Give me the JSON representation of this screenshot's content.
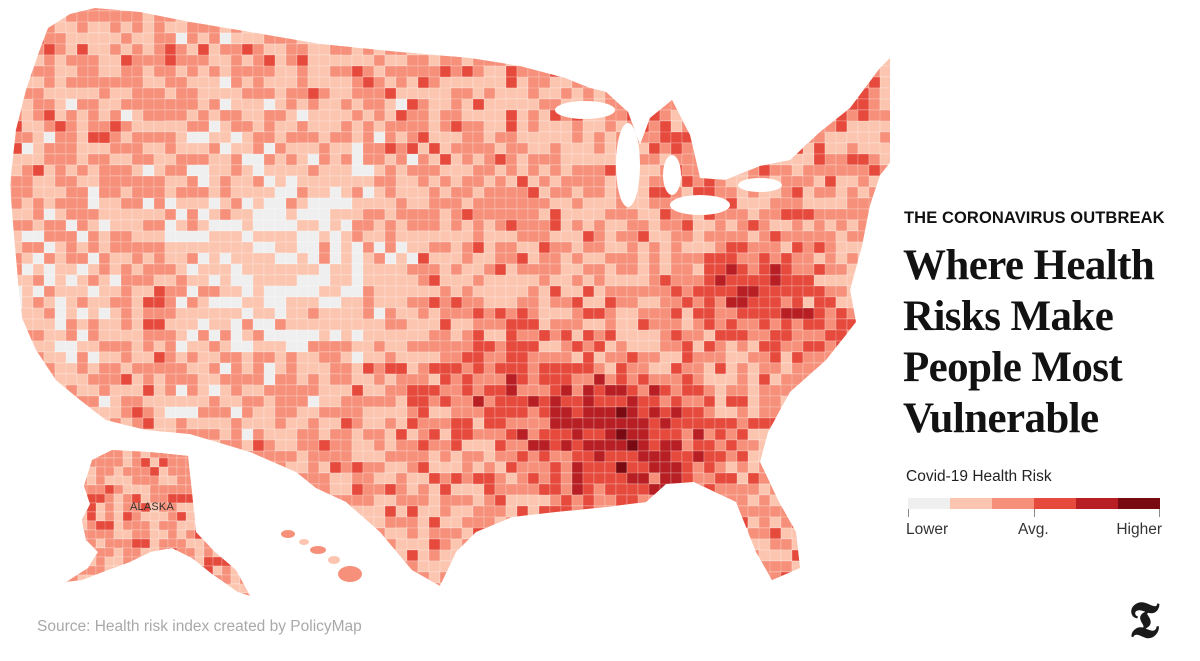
{
  "kicker": "THE CORONAVIRUS OUTBREAK",
  "headline": {
    "lines": [
      "Where Health",
      "Risks Make",
      "People Most",
      "Vulnerable"
    ]
  },
  "map": {
    "region_label": "ALASKA",
    "description_hidden": false
  },
  "legend": {
    "title": "Covid-19 Health Risk",
    "colors": [
      "#efefef",
      "#fbc5b0",
      "#f6907a",
      "#e64a3c",
      "#b71f24",
      "#7a0a12"
    ],
    "labels": {
      "low": "Lower",
      "avg": "Avg.",
      "high": "Higher"
    }
  },
  "source": "Source: Health risk index created by PolicyMap",
  "logo_icon": "nyt-logo-icon"
}
